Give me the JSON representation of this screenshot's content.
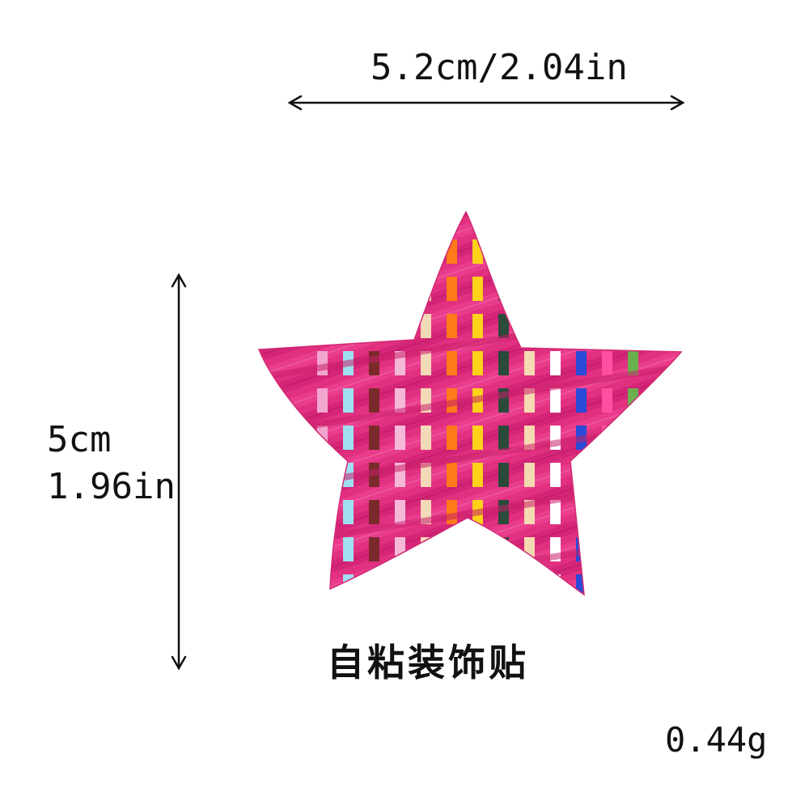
{
  "dimensions": {
    "width_label": "5.2cm/2.04in",
    "height_cm": "5cm",
    "height_in": "1.96in"
  },
  "caption": "自粘装饰贴",
  "weight": "0.44g",
  "colors": {
    "star_base": "#e0307f",
    "weave_dark": "#c8206a",
    "stripes": [
      "#f2a6cf",
      "#9fe0f0",
      "#7a2a2a",
      "#f5b8d8",
      "#f3d9b8",
      "#ff7a1a",
      "#ffd21a",
      "#2a4a3a",
      "#f5d9b0",
      "#ffffff",
      "#2a4ad8",
      "#ff4fa0",
      "#6ab04c"
    ]
  }
}
